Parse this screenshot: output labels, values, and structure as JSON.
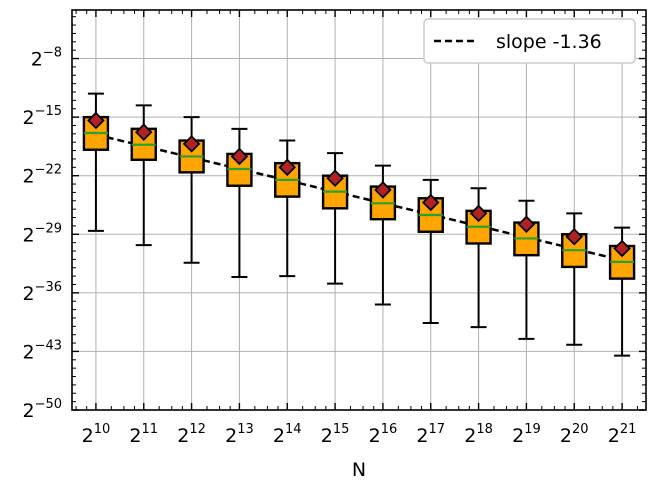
{
  "chart_data": {
    "type": "box",
    "title": "",
    "xlabel": "N",
    "ylabel": "",
    "x_scale": "log2",
    "y_scale": "log2",
    "x_tick_labels": [
      {
        "base": "2",
        "exp": "10"
      },
      {
        "base": "2",
        "exp": "11"
      },
      {
        "base": "2",
        "exp": "12"
      },
      {
        "base": "2",
        "exp": "13"
      },
      {
        "base": "2",
        "exp": "14"
      },
      {
        "base": "2",
        "exp": "15"
      },
      {
        "base": "2",
        "exp": "16"
      },
      {
        "base": "2",
        "exp": "17"
      },
      {
        "base": "2",
        "exp": "18"
      },
      {
        "base": "2",
        "exp": "19"
      },
      {
        "base": "2",
        "exp": "20"
      },
      {
        "base": "2",
        "exp": "21"
      }
    ],
    "y_tick_labels": [
      {
        "base": "2",
        "exp": "−8"
      },
      {
        "base": "2",
        "exp": "−15"
      },
      {
        "base": "2",
        "exp": "−22"
      },
      {
        "base": "2",
        "exp": "−29"
      },
      {
        "base": "2",
        "exp": "−36"
      },
      {
        "base": "2",
        "exp": "−43"
      },
      {
        "base": "2",
        "exp": "−50"
      }
    ],
    "y_tick_values_log2": [
      -8,
      -15,
      -22,
      -29,
      -36,
      -43,
      -50
    ],
    "ylim_log2": [
      -50,
      -2.2
    ],
    "xlim_log2": [
      9.5,
      21.5
    ],
    "grid": true,
    "legend": {
      "placement": "top-right",
      "entries": [
        {
          "label": "slope -1.36",
          "style": "dashed",
          "color": "#000000"
        }
      ]
    },
    "colors": {
      "box_fill": "#ffa500",
      "median": "#2ca02c",
      "mean_marker": "#b22222",
      "fit_line": "#000000",
      "grid": "#b0b0b0"
    },
    "boxes_log2": [
      {
        "x": 10,
        "whisker_low": -28.6,
        "q1": -18.9,
        "median": -16.9,
        "q3": -15.0,
        "whisker_high": -12.2,
        "mean": -15.4
      },
      {
        "x": 11,
        "whisker_low": -30.3,
        "q1": -20.1,
        "median": -18.3,
        "q3": -16.4,
        "whisker_high": -13.6,
        "mean": -16.8
      },
      {
        "x": 12,
        "whisker_low": -32.4,
        "q1": -21.6,
        "median": -19.7,
        "q3": -17.8,
        "whisker_high": -15.0,
        "mean": -18.2
      },
      {
        "x": 13,
        "whisker_low": -34.1,
        "q1": -23.2,
        "median": -21.2,
        "q3": -19.4,
        "whisker_high": -16.4,
        "mean": -19.7
      },
      {
        "x": 14,
        "whisker_low": -34.0,
        "q1": -24.5,
        "median": -22.5,
        "q3": -20.5,
        "whisker_high": -17.8,
        "mean": -21.0
      },
      {
        "x": 15,
        "whisker_low": -34.9,
        "q1": -25.9,
        "median": -23.9,
        "q3": -22.0,
        "whisker_high": -19.3,
        "mean": -22.3
      },
      {
        "x": 16,
        "whisker_low": -37.4,
        "q1": -27.2,
        "median": -25.3,
        "q3": -23.3,
        "whisker_high": -20.8,
        "mean": -23.7
      },
      {
        "x": 17,
        "whisker_low": -39.6,
        "q1": -28.7,
        "median": -26.7,
        "q3": -24.7,
        "whisker_high": -22.5,
        "mean": -25.2
      },
      {
        "x": 18,
        "whisker_low": -40.1,
        "q1": -30.1,
        "median": -28.1,
        "q3": -26.2,
        "whisker_high": -23.5,
        "mean": -26.5
      },
      {
        "x": 19,
        "whisker_low": -41.5,
        "q1": -31.5,
        "median": -29.5,
        "q3": -27.6,
        "whisker_high": -25.0,
        "mean": -27.8
      },
      {
        "x": 20,
        "whisker_low": -42.2,
        "q1": -32.9,
        "median": -30.9,
        "q3": -29.0,
        "whisker_high": -26.5,
        "mean": -29.3
      },
      {
        "x": 21,
        "whisker_low": -43.5,
        "q1": -34.3,
        "median": -32.3,
        "q3": -30.4,
        "whisker_high": -28.2,
        "mean": -30.7
      }
    ],
    "fit_line_log2": {
      "x": [
        10,
        21
      ],
      "y": [
        -17.1,
        -32.1
      ]
    }
  }
}
